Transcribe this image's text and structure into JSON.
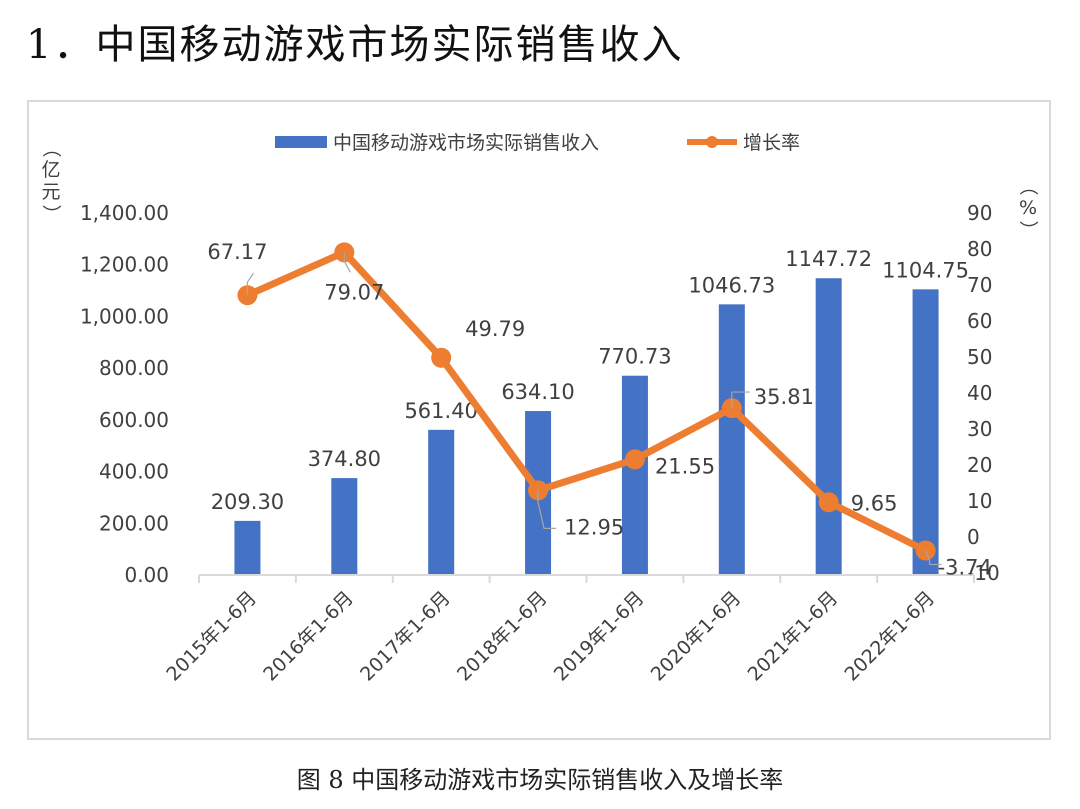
{
  "heading": "1．中国移动游戏市场实际销售收入",
  "caption": "图 8 中国移动游戏市场实际销售收入及增长率",
  "colors": {
    "bar": "#4472c4",
    "line": "#ed7d31",
    "text": "#404040",
    "axis": "#d9d9d9"
  },
  "chart_data": {
    "type": "bar",
    "categories": [
      "2015年1-6月",
      "2016年1-6月",
      "2017年1-6月",
      "2018年1-6月",
      "2019年1-6月",
      "2020年1-6月",
      "2021年1-6月",
      "2022年1-6月"
    ],
    "series": [
      {
        "name": "中国移动游戏市场实际销售收入",
        "type": "bar",
        "axis": "left",
        "values": [
          209.3,
          374.8,
          561.4,
          634.1,
          770.73,
          1046.73,
          1147.72,
          1104.75
        ],
        "labels": [
          "209.30",
          "374.80",
          "561.40",
          "634.10",
          "770.73",
          "1046.73",
          "1147.72",
          "1104.75"
        ]
      },
      {
        "name": "增长率",
        "type": "line",
        "axis": "right",
        "values": [
          67.17,
          79.07,
          49.79,
          12.95,
          21.55,
          35.81,
          9.65,
          -3.74
        ],
        "labels": [
          "67.17",
          "79.07",
          "49.79",
          "12.95",
          "21.55",
          "35.81",
          "9.65",
          "-3.74"
        ]
      }
    ],
    "ylabel": "（亿元）",
    "y2label": "（%）",
    "ylim": [
      0,
      1400
    ],
    "yticks": [
      "0.00",
      "200.00",
      "400.00",
      "600.00",
      "800.00",
      "1,000.00",
      "1,200.00",
      "1,400.00"
    ],
    "y2lim": [
      -10,
      90
    ],
    "y2ticks": [
      "-10",
      "0",
      "10",
      "20",
      "30",
      "40",
      "50",
      "60",
      "70",
      "80",
      "90"
    ],
    "legend": "top",
    "grid": false
  }
}
